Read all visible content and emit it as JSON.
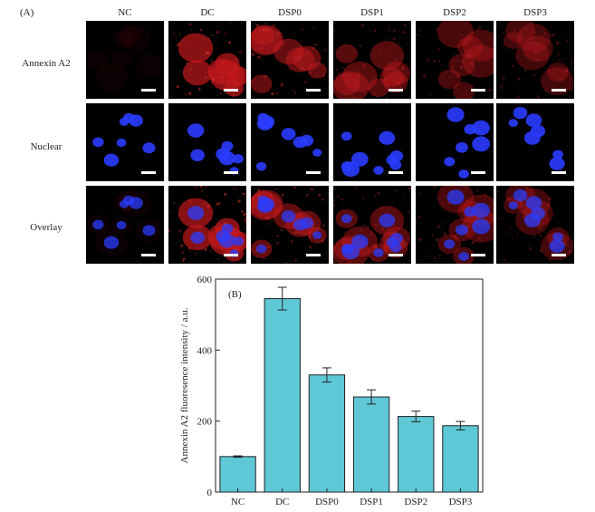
{
  "panel_a": {
    "label": "(A)",
    "columns": [
      "NC",
      "DC",
      "DSP0",
      "DSP1",
      "DSP2",
      "DSP3"
    ],
    "rows": [
      "Annexin A2",
      "Nuclear",
      "Overlay"
    ],
    "colors": {
      "annexin": "#c0181c",
      "nuclear": "#2a3cff",
      "background": "#000000"
    }
  },
  "chart_data": {
    "type": "bar",
    "panel_label": "(B)",
    "categories": [
      "NC",
      "DC",
      "DSP0",
      "DSP1",
      "DSP2",
      "DSP3"
    ],
    "values": [
      100,
      545,
      330,
      268,
      213,
      187
    ],
    "errors": [
      2,
      32,
      20,
      20,
      15,
      12
    ],
    "ylabel": "Annexin A2 fluoresence intensity / a.u.",
    "xlabel": "",
    "ylim": [
      0,
      600
    ],
    "yticks": [
      0,
      200,
      400,
      600
    ],
    "bar_color": "#5ec8d6",
    "grid": false
  }
}
